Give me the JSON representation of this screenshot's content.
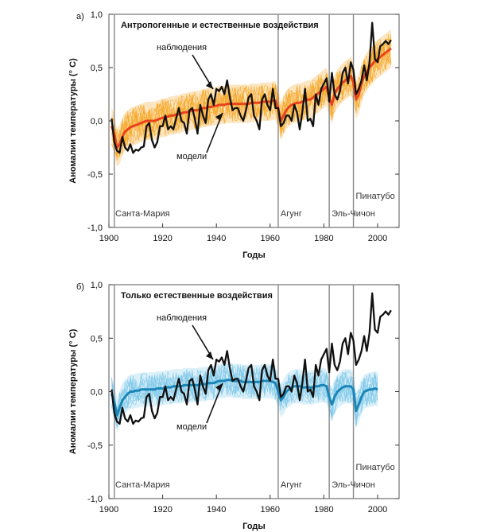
{
  "chart_data": [
    {
      "type": "line",
      "panel_label": "а)",
      "title": "Антропогенные и естественные воздействия",
      "xlabel": "Годы",
      "ylabel": "Аномалии температуры (° С)",
      "xlim": [
        1900,
        2008
      ],
      "ylim": [
        -1.0,
        1.0
      ],
      "x_ticks": [
        "1900",
        "1920",
        "1940",
        "1960",
        "1980",
        "2000"
      ],
      "y_ticks": [
        "-1,0",
        "-0,5",
        "0,0",
        "0,5",
        "1,0"
      ],
      "model_band_color": "#f5a623",
      "model_mean_color": "#e8431c",
      "obs_color": "#111111",
      "annotations": {
        "observations": "наблюдения",
        "models": "модели"
      },
      "volcanoes": [
        {
          "name": "Санта-Мария",
          "year": 1902
        },
        {
          "name": "Агунг",
          "year": 1963
        },
        {
          "name": "Эль-Чичон",
          "year": 1982
        },
        {
          "name": "Пинатубо",
          "year": 1991
        }
      ],
      "series": [
        {
          "name": "наблюдения",
          "x": [
            1901,
            1902,
            1903,
            1904,
            1905,
            1906,
            1907,
            1908,
            1909,
            1910,
            1911,
            1912,
            1913,
            1914,
            1915,
            1916,
            1917,
            1918,
            1919,
            1920,
            1921,
            1922,
            1923,
            1924,
            1925,
            1926,
            1927,
            1928,
            1929,
            1930,
            1931,
            1932,
            1933,
            1934,
            1935,
            1936,
            1937,
            1938,
            1939,
            1940,
            1941,
            1942,
            1943,
            1944,
            1945,
            1946,
            1947,
            1948,
            1949,
            1950,
            1951,
            1952,
            1953,
            1954,
            1955,
            1956,
            1957,
            1958,
            1959,
            1960,
            1961,
            1962,
            1963,
            1964,
            1965,
            1966,
            1967,
            1968,
            1969,
            1970,
            1971,
            1972,
            1973,
            1974,
            1975,
            1976,
            1977,
            1978,
            1979,
            1980,
            1981,
            1982,
            1983,
            1984,
            1985,
            1986,
            1987,
            1988,
            1989,
            1990,
            1991,
            1992,
            1993,
            1994,
            1995,
            1996,
            1997,
            1998,
            1999,
            2000,
            2001,
            2002,
            2003,
            2004,
            2005
          ],
          "values": [
            0.02,
            -0.2,
            -0.28,
            -0.3,
            -0.15,
            -0.25,
            -0.28,
            -0.22,
            -0.3,
            -0.27,
            -0.28,
            -0.25,
            -0.24,
            -0.05,
            -0.02,
            -0.18,
            -0.25,
            -0.2,
            -0.05,
            -0.05,
            0.05,
            -0.08,
            -0.05,
            -0.08,
            0.02,
            0.12,
            0.0,
            -0.02,
            -0.12,
            0.1,
            0.12,
            0.02,
            -0.12,
            0.15,
            0.05,
            -0.02,
            0.2,
            0.25,
            0.15,
            0.3,
            0.28,
            0.32,
            0.25,
            0.38,
            0.22,
            0.1,
            0.12,
            0.12,
            0.05,
            0.0,
            0.1,
            0.22,
            0.25,
            0.05,
            0.0,
            -0.08,
            0.2,
            0.25,
            0.15,
            0.1,
            0.3,
            0.12,
            0.12,
            -0.05,
            -0.02,
            0.05,
            0.05,
            0.0,
            0.15,
            0.08,
            -0.08,
            0.08,
            0.3,
            0.0,
            0.02,
            -0.05,
            0.25,
            0.15,
            0.3,
            0.35,
            0.4,
            0.18,
            0.45,
            0.25,
            0.2,
            0.28,
            0.45,
            0.5,
            0.35,
            0.55,
            0.48,
            0.25,
            0.3,
            0.38,
            0.52,
            0.38,
            0.55,
            0.92,
            0.58,
            0.55,
            0.7,
            0.72,
            0.75,
            0.72,
            0.76
          ]
        },
        {
          "name": "модели",
          "x": [
            1901,
            1902,
            1903,
            1904,
            1905,
            1906,
            1907,
            1908,
            1909,
            1910,
            1911,
            1912,
            1913,
            1914,
            1915,
            1916,
            1917,
            1918,
            1919,
            1920,
            1921,
            1922,
            1923,
            1924,
            1925,
            1926,
            1927,
            1928,
            1929,
            1930,
            1931,
            1932,
            1933,
            1934,
            1935,
            1936,
            1937,
            1938,
            1939,
            1940,
            1941,
            1942,
            1943,
            1944,
            1945,
            1946,
            1947,
            1948,
            1949,
            1950,
            1951,
            1952,
            1953,
            1954,
            1955,
            1956,
            1957,
            1958,
            1959,
            1960,
            1961,
            1962,
            1963,
            1964,
            1965,
            1966,
            1967,
            1968,
            1969,
            1970,
            1971,
            1972,
            1973,
            1974,
            1975,
            1976,
            1977,
            1978,
            1979,
            1980,
            1981,
            1982,
            1983,
            1984,
            1985,
            1986,
            1987,
            1988,
            1989,
            1990,
            1991,
            1992,
            1993,
            1994,
            1995,
            1996,
            1997,
            1998,
            1999,
            2000,
            2001,
            2002,
            2003,
            2004,
            2005
          ],
          "values": [
            -0.05,
            -0.12,
            -0.25,
            -0.22,
            -0.15,
            -0.1,
            -0.08,
            -0.06,
            -0.05,
            -0.04,
            -0.03,
            -0.02,
            -0.01,
            0.0,
            0.0,
            0.0,
            0.0,
            0.01,
            0.02,
            0.03,
            0.03,
            0.04,
            0.05,
            0.05,
            0.06,
            0.06,
            0.07,
            0.08,
            0.08,
            0.09,
            0.1,
            0.1,
            0.1,
            0.11,
            0.12,
            0.12,
            0.13,
            0.13,
            0.14,
            0.14,
            0.15,
            0.15,
            0.15,
            0.16,
            0.16,
            0.16,
            0.16,
            0.16,
            0.16,
            0.16,
            0.16,
            0.16,
            0.17,
            0.17,
            0.17,
            0.17,
            0.18,
            0.18,
            0.18,
            0.18,
            0.19,
            0.19,
            0.12,
            0.0,
            0.05,
            0.1,
            0.13,
            0.15,
            0.16,
            0.17,
            0.17,
            0.18,
            0.19,
            0.2,
            0.2,
            0.22,
            0.24,
            0.26,
            0.28,
            0.3,
            0.32,
            0.22,
            0.15,
            0.25,
            0.3,
            0.33,
            0.36,
            0.38,
            0.4,
            0.42,
            0.36,
            0.2,
            0.25,
            0.35,
            0.42,
            0.46,
            0.5,
            0.53,
            0.56,
            0.58,
            0.6,
            0.62,
            0.64,
            0.66,
            0.68
          ],
          "spread": 0.18
        }
      ]
    },
    {
      "type": "line",
      "panel_label": "б)",
      "title": "Только естественные воздействия",
      "xlabel": "Годы",
      "ylabel": "Аномалии температуры (° С)",
      "xlim": [
        1900,
        2008
      ],
      "ylim": [
        -1.0,
        1.0
      ],
      "x_ticks": [
        "1900",
        "1920",
        "1940",
        "1960",
        "1980",
        "2000"
      ],
      "y_ticks": [
        "-1,0",
        "-0,5",
        "0,0",
        "0,5",
        "1,0"
      ],
      "model_band_color": "#7fc8e8",
      "model_mean_color": "#1a86b8",
      "obs_color": "#111111",
      "annotations": {
        "observations": "наблюдения",
        "models": "модели"
      },
      "volcanoes": [
        {
          "name": "Санта-Мария",
          "year": 1902
        },
        {
          "name": "Агунг",
          "year": 1963
        },
        {
          "name": "Эль-Чичон",
          "year": 1982
        },
        {
          "name": "Пинатубо",
          "year": 1991
        }
      ],
      "series": [
        {
          "name": "наблюдения",
          "x": [
            1901,
            1902,
            1903,
            1904,
            1905,
            1906,
            1907,
            1908,
            1909,
            1910,
            1911,
            1912,
            1913,
            1914,
            1915,
            1916,
            1917,
            1918,
            1919,
            1920,
            1921,
            1922,
            1923,
            1924,
            1925,
            1926,
            1927,
            1928,
            1929,
            1930,
            1931,
            1932,
            1933,
            1934,
            1935,
            1936,
            1937,
            1938,
            1939,
            1940,
            1941,
            1942,
            1943,
            1944,
            1945,
            1946,
            1947,
            1948,
            1949,
            1950,
            1951,
            1952,
            1953,
            1954,
            1955,
            1956,
            1957,
            1958,
            1959,
            1960,
            1961,
            1962,
            1963,
            1964,
            1965,
            1966,
            1967,
            1968,
            1969,
            1970,
            1971,
            1972,
            1973,
            1974,
            1975,
            1976,
            1977,
            1978,
            1979,
            1980,
            1981,
            1982,
            1983,
            1984,
            1985,
            1986,
            1987,
            1988,
            1989,
            1990,
            1991,
            1992,
            1993,
            1994,
            1995,
            1996,
            1997,
            1998,
            1999,
            2000,
            2001,
            2002,
            2003,
            2004,
            2005
          ],
          "values": [
            0.02,
            -0.2,
            -0.28,
            -0.3,
            -0.15,
            -0.25,
            -0.28,
            -0.22,
            -0.3,
            -0.27,
            -0.28,
            -0.25,
            -0.24,
            -0.05,
            -0.02,
            -0.18,
            -0.25,
            -0.2,
            -0.05,
            -0.05,
            0.05,
            -0.08,
            -0.05,
            -0.08,
            0.02,
            0.12,
            0.0,
            -0.02,
            -0.12,
            0.1,
            0.12,
            0.02,
            -0.12,
            0.15,
            0.05,
            -0.02,
            0.2,
            0.25,
            0.15,
            0.3,
            0.28,
            0.32,
            0.25,
            0.38,
            0.22,
            0.1,
            0.12,
            0.12,
            0.05,
            0.0,
            0.1,
            0.22,
            0.25,
            0.05,
            0.0,
            -0.08,
            0.2,
            0.25,
            0.15,
            0.1,
            0.3,
            0.12,
            0.12,
            -0.05,
            -0.02,
            0.05,
            0.05,
            0.0,
            0.15,
            0.08,
            -0.08,
            0.08,
            0.3,
            0.0,
            0.02,
            -0.05,
            0.25,
            0.15,
            0.3,
            0.35,
            0.4,
            0.18,
            0.45,
            0.25,
            0.2,
            0.28,
            0.45,
            0.5,
            0.35,
            0.55,
            0.48,
            0.25,
            0.3,
            0.38,
            0.52,
            0.38,
            0.55,
            0.92,
            0.58,
            0.55,
            0.7,
            0.72,
            0.75,
            0.72,
            0.76
          ]
        },
        {
          "name": "модели",
          "x": [
            1901,
            1902,
            1903,
            1904,
            1905,
            1906,
            1907,
            1908,
            1909,
            1910,
            1911,
            1912,
            1913,
            1914,
            1915,
            1916,
            1917,
            1918,
            1919,
            1920,
            1921,
            1922,
            1923,
            1924,
            1925,
            1926,
            1927,
            1928,
            1929,
            1930,
            1931,
            1932,
            1933,
            1934,
            1935,
            1936,
            1937,
            1938,
            1939,
            1940,
            1941,
            1942,
            1943,
            1944,
            1945,
            1946,
            1947,
            1948,
            1949,
            1950,
            1951,
            1952,
            1953,
            1954,
            1955,
            1956,
            1957,
            1958,
            1959,
            1960,
            1961,
            1962,
            1963,
            1964,
            1965,
            1966,
            1967,
            1968,
            1969,
            1970,
            1971,
            1972,
            1973,
            1974,
            1975,
            1976,
            1977,
            1978,
            1979,
            1980,
            1981,
            1982,
            1983,
            1984,
            1985,
            1986,
            1987,
            1988,
            1989,
            1990,
            1991,
            1992,
            1993,
            1994,
            1995,
            1996,
            1997,
            1998,
            1999,
            2000
          ],
          "values": [
            -0.02,
            -0.1,
            -0.22,
            -0.15,
            -0.08,
            -0.05,
            -0.02,
            0.0,
            0.0,
            0.01,
            0.01,
            0.02,
            0.02,
            0.02,
            0.02,
            0.02,
            0.02,
            0.03,
            0.03,
            0.03,
            0.04,
            0.04,
            0.04,
            0.05,
            0.05,
            0.05,
            0.05,
            0.06,
            0.06,
            0.06,
            0.06,
            0.06,
            0.06,
            0.07,
            0.07,
            0.07,
            0.08,
            0.08,
            0.08,
            0.09,
            0.1,
            0.1,
            0.1,
            0.11,
            0.11,
            0.1,
            0.1,
            0.1,
            0.1,
            0.09,
            0.09,
            0.09,
            0.09,
            0.09,
            0.09,
            0.09,
            0.1,
            0.1,
            0.1,
            0.1,
            0.09,
            0.08,
            0.0,
            -0.08,
            -0.05,
            0.0,
            0.02,
            0.04,
            0.05,
            0.05,
            0.05,
            0.04,
            0.04,
            0.04,
            0.04,
            0.04,
            0.05,
            0.05,
            0.06,
            0.06,
            0.05,
            -0.05,
            -0.12,
            -0.05,
            0.0,
            0.02,
            0.04,
            0.05,
            0.05,
            0.05,
            0.02,
            -0.18,
            -0.12,
            -0.05,
            0.0,
            0.01,
            0.02,
            0.02,
            0.03,
            0.02
          ],
          "spread": 0.16
        }
      ]
    }
  ]
}
